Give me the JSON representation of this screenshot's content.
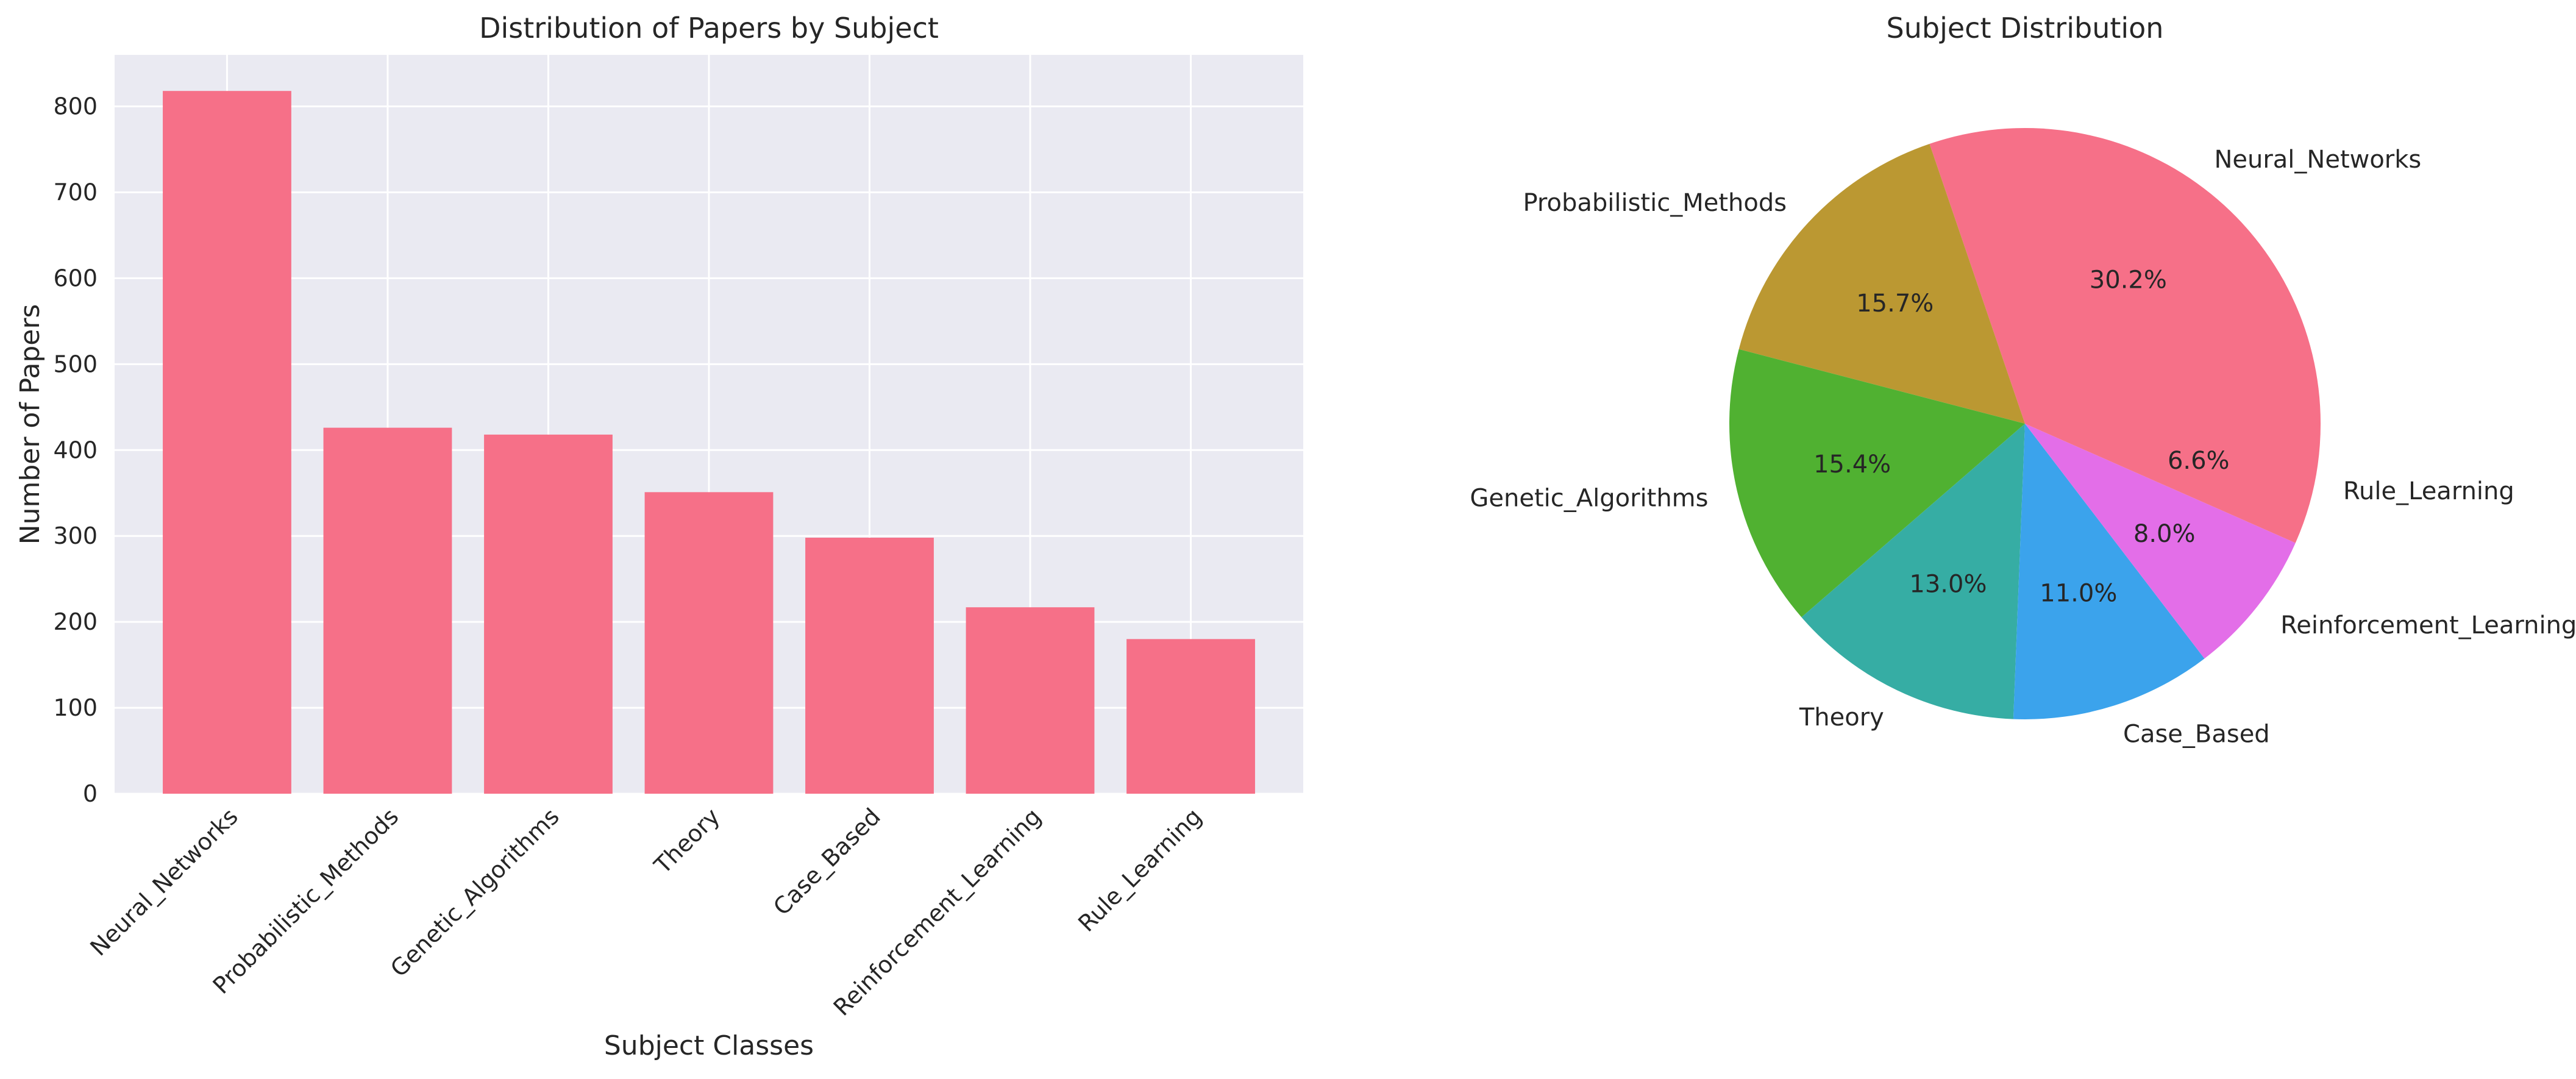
{
  "chart_data": [
    {
      "type": "bar",
      "title": "Distribution of Papers by Subject",
      "xlabel": "Subject Classes",
      "ylabel": "Number of Papers",
      "categories": [
        "Neural_Networks",
        "Probabilistic_Methods",
        "Genetic_Algorithms",
        "Theory",
        "Case_Based",
        "Reinforcement_Learning",
        "Rule_Learning"
      ],
      "values": [
        818,
        426,
        418,
        351,
        298,
        217,
        180
      ],
      "ylim": [
        0,
        860
      ],
      "yticks": [
        "0",
        "100",
        "200",
        "300",
        "400",
        "500",
        "600",
        "700",
        "800"
      ],
      "grid": true,
      "color": "#f67088"
    },
    {
      "type": "pie",
      "title": "Subject Distribution",
      "categories": [
        "Neural_Networks",
        "Probabilistic_Methods",
        "Genetic_Algorithms",
        "Theory",
        "Case_Based",
        "Reinforcement_Learning",
        "Rule_Learning"
      ],
      "values": [
        30.2,
        15.7,
        15.4,
        13.0,
        11.0,
        8.0,
        6.6
      ],
      "labels_pct": [
        "30.2%",
        "15.7%",
        "15.4%",
        "13.0%",
        "11.0%",
        "8.0%",
        "6.6%"
      ],
      "colors": [
        "#f67088",
        "#bb9832",
        "#50b131",
        "#36ada4",
        "#3ba3ec",
        "#e36ee8",
        "#f67088"
      ]
    }
  ]
}
